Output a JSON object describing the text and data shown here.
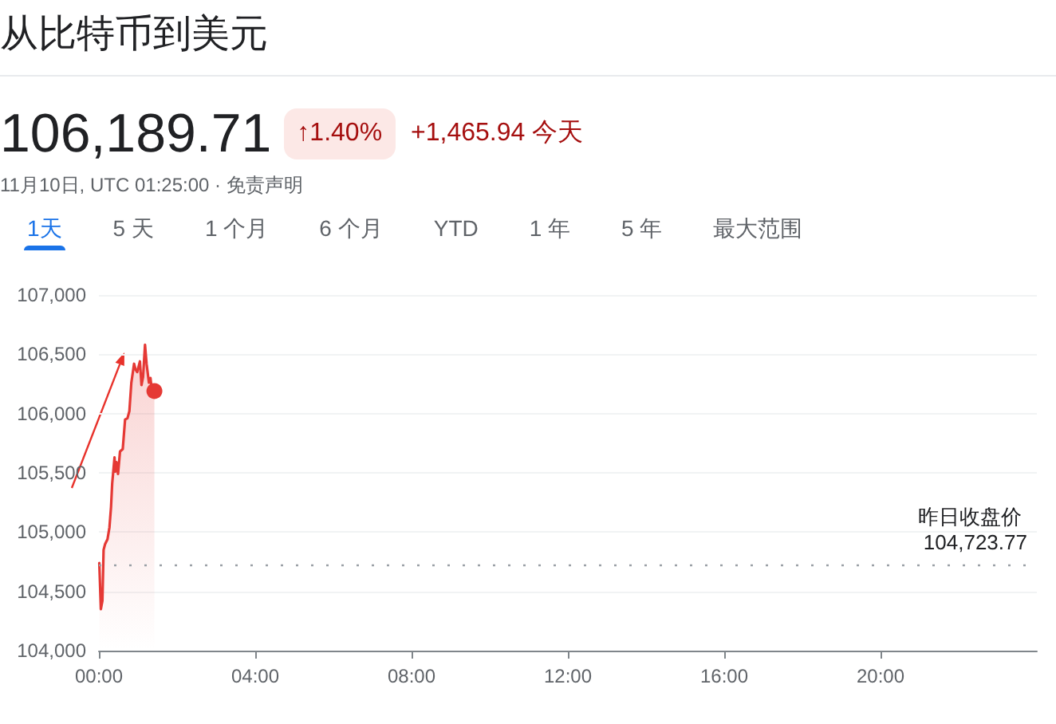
{
  "chart_data": {
    "type": "area",
    "title": "从比特币到美元",
    "annotations": [
      "106,189.71",
      "↑1.40%",
      "+1,465.94 今天",
      "11月10日, UTC 01:25:00 · 免责声明",
      "1天",
      "5 天",
      "1 个月",
      "6 个月",
      "YTD",
      "1 年",
      "5 年",
      "最大范围"
    ],
    "x": [
      0.01,
      0.05,
      0.09,
      0.12,
      0.16,
      0.22,
      0.27,
      0.31,
      0.34,
      0.4,
      0.42,
      0.45,
      0.49,
      0.54,
      0.61,
      0.67,
      0.73,
      0.78,
      0.83,
      0.9,
      0.94,
      0.98,
      1.05,
      1.09,
      1.13,
      1.18,
      1.22,
      1.28,
      1.32,
      1.36,
      1.39,
      1.42
    ],
    "values": [
      104740,
      104350,
      104420,
      104850,
      104900,
      104940,
      105040,
      105210,
      105410,
      105630,
      105510,
      105590,
      105490,
      105680,
      105700,
      105950,
      105960,
      106020,
      106260,
      106420,
      106370,
      106350,
      106440,
      106240,
      106310,
      106580,
      106420,
      106260,
      106300,
      106180,
      106220,
      106190
    ],
    "color": "#e53935",
    "xlim": [
      0,
      24
    ],
    "xticks": [
      {
        "value": 0,
        "label": "00:00"
      },
      {
        "value": 4,
        "label": "04:00"
      },
      {
        "value": 8,
        "label": "08:00"
      },
      {
        "value": 12,
        "label": "12:00"
      },
      {
        "value": 16,
        "label": "16:00"
      },
      {
        "value": 20,
        "label": "20:00"
      }
    ],
    "ylim": [
      104000,
      107000
    ],
    "yticks": [
      {
        "value": 104000,
        "label": "104,000"
      },
      {
        "value": 104500,
        "label": "104,500"
      },
      {
        "value": 105000,
        "label": "105,000"
      },
      {
        "value": 105500,
        "label": "105,500"
      },
      {
        "value": 106000,
        "label": "106,000"
      },
      {
        "value": 106500,
        "label": "106,500"
      },
      {
        "value": 107000,
        "label": "107,000"
      }
    ],
    "grid": "y",
    "ref_lines": [
      {
        "axis": "y",
        "value": 104723.77,
        "label": "昨日收盘价 104,723.77",
        "color": "#9aa0a6",
        "line_style": "dotted"
      }
    ]
  }
}
